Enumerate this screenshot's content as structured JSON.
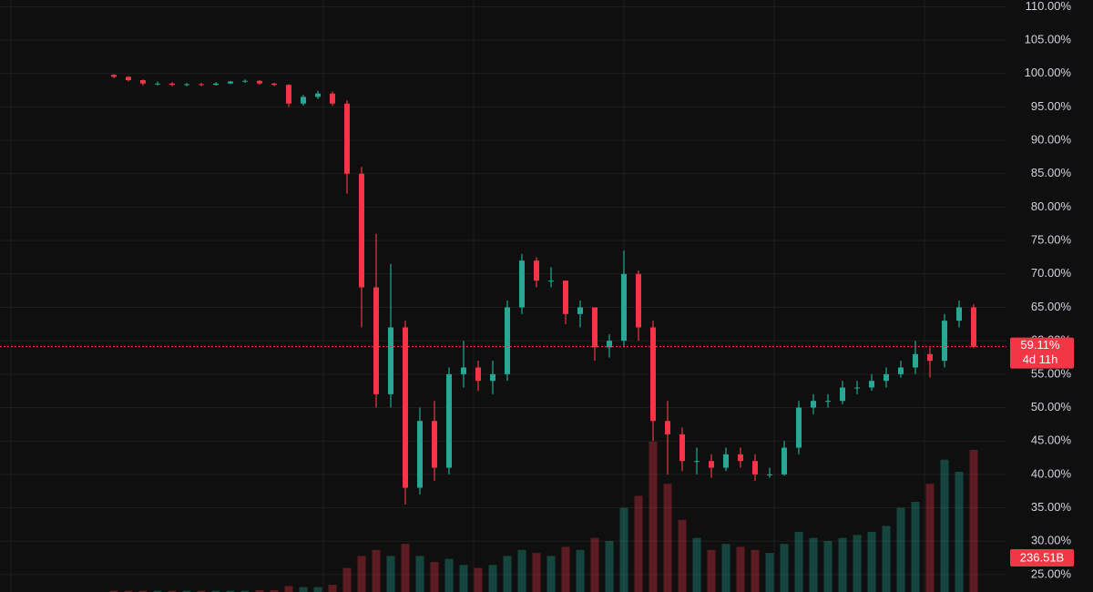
{
  "chart_data": {
    "type": "candlestick",
    "open": [
      99.8,
      99.5,
      99,
      98.5,
      98.5,
      98.3,
      98.4,
      98.3,
      98.5,
      98.8,
      98.9,
      98.5,
      98.3,
      95.5,
      96.5,
      97,
      95.5,
      85,
      68,
      52,
      62,
      38,
      48,
      41,
      55,
      56,
      54,
      55,
      65,
      72,
      69,
      69,
      64,
      65,
      59,
      60,
      70,
      62,
      48,
      46,
      42,
      42,
      41,
      43,
      42,
      40,
      40,
      44,
      50,
      51,
      51,
      53,
      53,
      54,
      55,
      56,
      58,
      57,
      63,
      65
    ],
    "high": [
      99.9,
      99.6,
      99.1,
      98.8,
      98.7,
      98.6,
      98.6,
      98.7,
      98.9,
      99.1,
      99,
      98.6,
      98.4,
      96.8,
      97.4,
      97.3,
      96,
      86,
      76,
      71.5,
      63,
      50,
      51,
      56,
      60,
      57,
      57,
      66,
      73,
      72.5,
      71,
      69,
      66,
      65,
      61,
      73.5,
      70.5,
      63,
      51,
      47,
      44,
      43,
      44,
      44,
      43,
      41,
      45,
      51,
      52,
      52,
      54,
      54,
      55,
      56,
      57,
      60,
      59,
      64,
      66,
      65.5
    ],
    "low": [
      99.3,
      98.8,
      98.2,
      98.2,
      98.1,
      98.1,
      98.1,
      98.2,
      98.4,
      98.6,
      98.3,
      98.1,
      95,
      95.2,
      96.2,
      95.2,
      82,
      62,
      50,
      50,
      35.5,
      37,
      39,
      40,
      53,
      52.5,
      52,
      54,
      64,
      68,
      68,
      62.5,
      62,
      57,
      57.5,
      59,
      60,
      45,
      40,
      40.5,
      40,
      39.5,
      40.5,
      41,
      39,
      39.5,
      39.8,
      43,
      49,
      50,
      50.5,
      52,
      52.5,
      53,
      54.5,
      55,
      54.5,
      56,
      62,
      58.9
    ],
    "close": [
      99.5,
      99,
      98.5,
      98.5,
      98.3,
      98.4,
      98.3,
      98.5,
      98.8,
      98.9,
      98.5,
      98.3,
      95.5,
      96.5,
      97,
      95.5,
      85,
      68,
      52,
      62,
      38,
      48,
      41,
      55,
      56,
      54,
      55,
      65,
      72,
      69,
      69,
      64,
      65,
      59,
      60,
      70,
      62,
      48,
      46,
      42,
      42,
      41,
      43,
      42,
      40,
      40,
      44,
      50,
      51,
      51,
      53,
      53,
      54,
      55,
      56,
      58,
      57,
      63,
      65,
      59.11
    ],
    "volume": [
      2,
      2,
      2,
      2,
      2,
      2,
      2,
      2,
      2,
      2,
      3,
      3,
      10,
      8,
      8,
      12,
      40,
      60,
      70,
      60,
      80,
      60,
      50,
      55,
      45,
      40,
      45,
      60,
      70,
      65,
      60,
      75,
      70,
      90,
      85,
      140,
      160,
      250,
      180,
      120,
      90,
      70,
      80,
      75,
      70,
      65,
      80,
      100,
      90,
      85,
      90,
      95,
      100,
      110,
      140,
      150,
      180,
      220,
      200,
      236.51
    ],
    "up_color": "#22ab94",
    "down_color": "#f23645",
    "last_price_label": "59.11%",
    "countdown": "4d 11h",
    "last_volume_label": "236.51B",
    "ylim": [
      22.4,
      111.0
    ],
    "yticks": [
      {
        "value": 25,
        "label": "25.00%"
      },
      {
        "value": 30,
        "label": "30.00%"
      },
      {
        "value": 35,
        "label": "35.00%"
      },
      {
        "value": 40,
        "label": "40.00%"
      },
      {
        "value": 45,
        "label": "45.00%"
      },
      {
        "value": 50,
        "label": "50.00%"
      },
      {
        "value": 55,
        "label": "55.00%"
      },
      {
        "value": 60,
        "label": "60.00%"
      },
      {
        "value": 65,
        "label": "65.00%"
      },
      {
        "value": 70,
        "label": "70.00%"
      },
      {
        "value": 75,
        "label": "75.00%"
      },
      {
        "value": 80,
        "label": "80.00%"
      },
      {
        "value": 85,
        "label": "85.00%"
      },
      {
        "value": 90,
        "label": "90.00%"
      },
      {
        "value": 95,
        "label": "95.00%"
      },
      {
        "value": 100,
        "label": "100.00%"
      },
      {
        "value": 105,
        "label": "105.00%"
      },
      {
        "value": 110,
        "label": "110.00%"
      }
    ],
    "grid": true
  }
}
